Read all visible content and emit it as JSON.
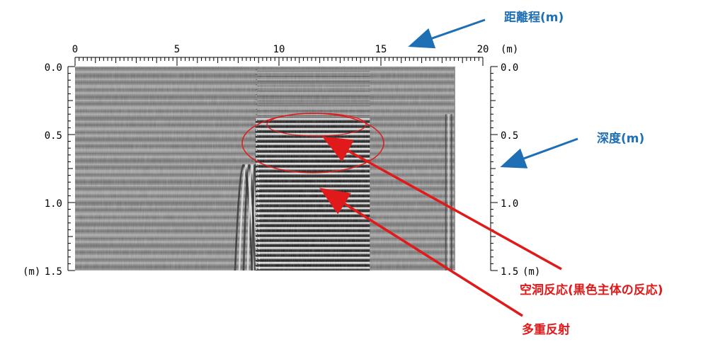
{
  "labels": {
    "distance": "距離程(m)",
    "depth": "深度(m)",
    "cavity": "空洞反応(黒色主体の反応)",
    "multiple": "多重反射"
  },
  "distance_axis": {
    "ticks": [
      "0",
      "5",
      "10",
      "15",
      "20"
    ],
    "unit": "(m)",
    "range": [
      0,
      20
    ]
  },
  "depth_axis": {
    "left_ticks": [
      "0.0",
      "0.5",
      "1.0",
      "1.5"
    ],
    "left_unit": "(m)",
    "right_ticks": [
      "0.0",
      "0.5",
      "1.0",
      "1.5"
    ],
    "right_unit": "(m)",
    "range": [
      0,
      1.5
    ]
  },
  "colors": {
    "annotation_blue": "#1f6fb5",
    "annotation_red": "#e01a1a"
  },
  "radargram": {
    "distance_extent": [
      0,
      18.6
    ],
    "cavity_region_distance": [
      8.9,
      14.5
    ],
    "cavity_region_depth": [
      0.35,
      0.75
    ],
    "multiple_reflection_depth": [
      0.75,
      1.5
    ],
    "left_disturbance_distance": 7.5
  }
}
